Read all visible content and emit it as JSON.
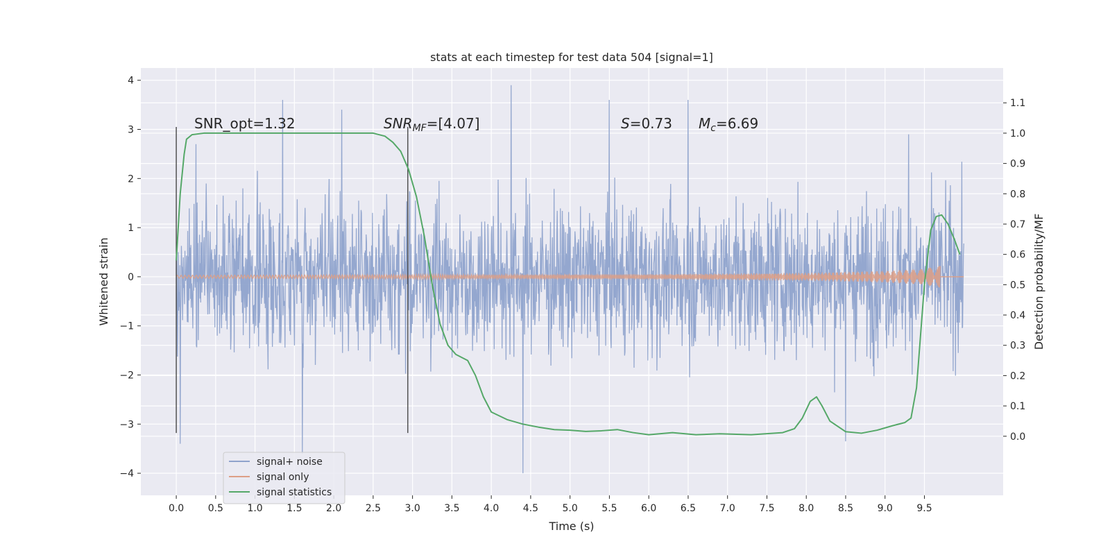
{
  "chart_data": {
    "type": "line",
    "title": "stats at each timestep for test data 504 [signal=1]",
    "xlabel": "Time (s)",
    "ylabel": "Whitened strain",
    "y2label": "Detection probability/MF",
    "xlim": [
      -0.45,
      10.5
    ],
    "ylim": [
      -4.45,
      4.25
    ],
    "y2lim": [
      -0.195,
      1.215
    ],
    "xticks": [
      "0.0",
      "0.5",
      "1.0",
      "1.5",
      "2.0",
      "2.5",
      "3.0",
      "3.5",
      "4.0",
      "4.5",
      "5.0",
      "5.5",
      "6.0",
      "6.5",
      "7.0",
      "7.5",
      "8.0",
      "8.5",
      "9.0",
      "9.5"
    ],
    "yticks": [
      "4",
      "3",
      "2",
      "1",
      "0",
      "−1",
      "−2",
      "−3",
      "−4"
    ],
    "y2ticks": [
      "0.0",
      "0.1",
      "0.2",
      "0.3",
      "0.4",
      "0.5",
      "0.6",
      "0.7",
      "0.8",
      "0.9",
      "1.0",
      "1.1"
    ],
    "grid": true,
    "legend_position": "lower-left",
    "annotations": {
      "snr_opt": "SNR_opt=1.32",
      "snr_mf_prefix": "SNR",
      "snr_mf_sub": "MF",
      "snr_mf_value": "=[4.07]",
      "s_prefix": "S",
      "s_value": "=0.73",
      "mc_prefix": "M",
      "mc_sub": "c",
      "mc_value": "=6.69"
    },
    "vertical_lines_x": [
      0.0,
      2.94
    ],
    "series": [
      {
        "name": "signal+ noise",
        "color": "#8fa3cc",
        "x_range": [
          0.0,
          10.0
        ],
        "envelope_note": "noisy strain, dense band",
        "typical_range": [
          -1.9,
          1.9
        ],
        "extremes": [
          [
            0.05,
            -3.4
          ],
          [
            0.25,
            2.7
          ],
          [
            1.35,
            3.6
          ],
          [
            1.6,
            -3.6
          ],
          [
            2.1,
            3.4
          ],
          [
            4.25,
            3.9
          ],
          [
            4.4,
            -4.0
          ],
          [
            5.5,
            3.6
          ],
          [
            6.5,
            3.6
          ],
          [
            8.5,
            -3.35
          ],
          [
            9.3,
            2.9
          ]
        ]
      },
      {
        "name": "signal only",
        "color": "#dd9f86",
        "x_range": [
          0.0,
          9.7
        ],
        "amplitude_points": [
          [
            0.0,
            0.03
          ],
          [
            3.0,
            0.04
          ],
          [
            6.0,
            0.05
          ],
          [
            8.0,
            0.08
          ],
          [
            9.0,
            0.12
          ],
          [
            9.5,
            0.16
          ],
          [
            9.65,
            0.22
          ]
        ]
      },
      {
        "name": "signal statistics",
        "color": "#55a868",
        "x": [
          0.0,
          0.05,
          0.1,
          0.13,
          0.2,
          0.35,
          0.6,
          1.0,
          1.5,
          2.0,
          2.5,
          2.65,
          2.75,
          2.85,
          2.95,
          3.05,
          3.15,
          3.25,
          3.35,
          3.45,
          3.55,
          3.7,
          3.8,
          3.9,
          4.0,
          4.2,
          4.4,
          4.6,
          4.8,
          5.0,
          5.2,
          5.4,
          5.6,
          5.8,
          6.0,
          6.3,
          6.6,
          6.9,
          7.3,
          7.7,
          7.85,
          7.95,
          8.05,
          8.13,
          8.2,
          8.3,
          8.5,
          8.7,
          8.9,
          9.1,
          9.25,
          9.33,
          9.4,
          9.5,
          9.58,
          9.65,
          9.72,
          9.8,
          9.88,
          9.95
        ],
        "y": [
          0.58,
          0.8,
          0.93,
          0.98,
          0.995,
          1.0,
          1.0,
          1.0,
          1.0,
          1.0,
          1.0,
          0.99,
          0.97,
          0.94,
          0.88,
          0.79,
          0.66,
          0.5,
          0.37,
          0.3,
          0.27,
          0.25,
          0.2,
          0.13,
          0.08,
          0.055,
          0.04,
          0.03,
          0.022,
          0.02,
          0.016,
          0.018,
          0.022,
          0.012,
          0.005,
          0.012,
          0.005,
          0.008,
          0.005,
          0.012,
          0.025,
          0.06,
          0.115,
          0.13,
          0.1,
          0.05,
          0.015,
          0.01,
          0.02,
          0.035,
          0.045,
          0.06,
          0.16,
          0.5,
          0.68,
          0.725,
          0.73,
          0.7,
          0.65,
          0.6
        ]
      }
    ]
  }
}
